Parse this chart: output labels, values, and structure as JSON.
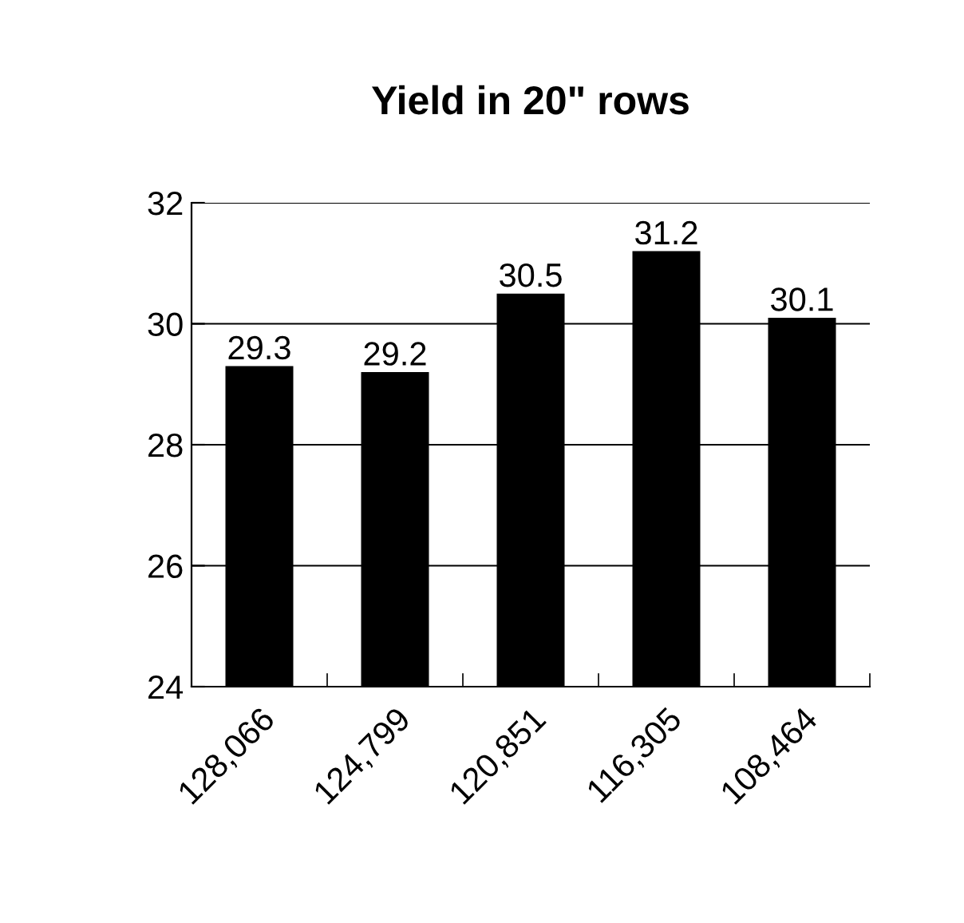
{
  "chart_data": {
    "type": "bar",
    "title": "Yield in 20\" rows",
    "categories": [
      "128,066",
      "124,799",
      "120,851",
      "116,305",
      "108,464"
    ],
    "values": [
      29.3,
      29.2,
      30.5,
      31.2,
      30.1
    ],
    "color": "#000000",
    "ylim": [
      24,
      32
    ],
    "yticks": [
      24,
      26,
      28,
      30,
      32
    ],
    "grid": "y",
    "data_labels": true
  }
}
